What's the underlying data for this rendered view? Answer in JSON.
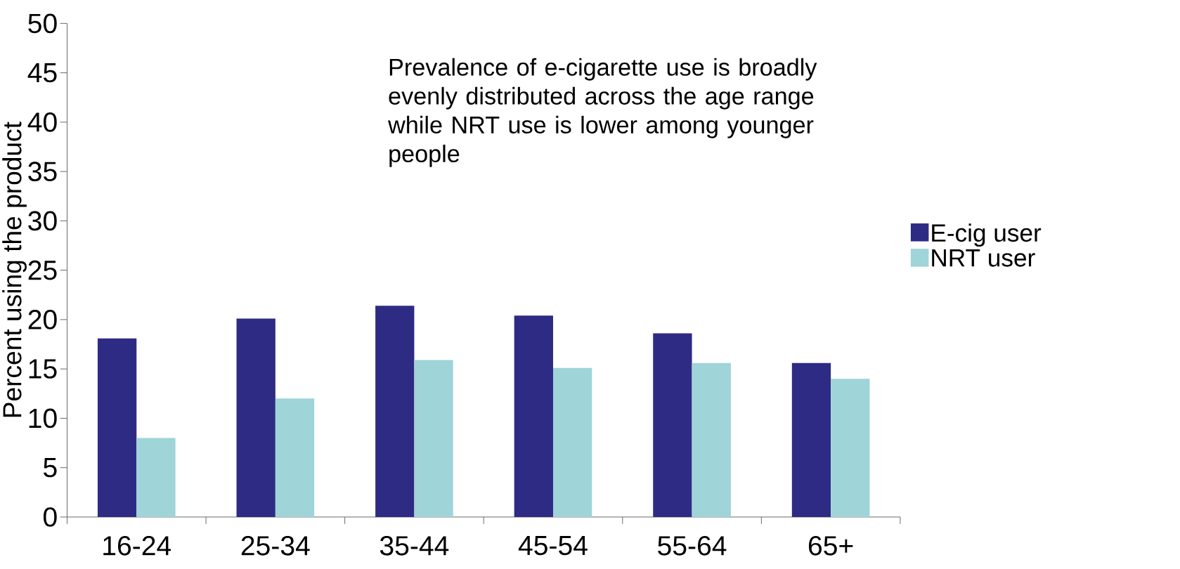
{
  "chart_data": {
    "type": "bar",
    "ylabel": "Percent using the product",
    "categories": [
      "16-24",
      "25-34",
      "35-44",
      "45-54",
      "55-64",
      "65+"
    ],
    "series": [
      {
        "name": "E-cig user",
        "color": "#2e2b84",
        "values": [
          18.1,
          20.1,
          21.4,
          20.4,
          18.6,
          15.6
        ]
      },
      {
        "name": "NRT user",
        "color": "#9fd4d8",
        "values": [
          8.0,
          12.0,
          15.9,
          15.1,
          15.6,
          14.0
        ]
      }
    ],
    "ylim": [
      0,
      50
    ],
    "yticks": [
      0,
      5,
      10,
      15,
      20,
      25,
      30,
      35,
      40,
      45,
      50
    ],
    "annotations": [
      "Prevalence of e-cigarette use is broadly evenly distributed across the age range while NRT use is lower among younger people"
    ],
    "legend": "right"
  }
}
